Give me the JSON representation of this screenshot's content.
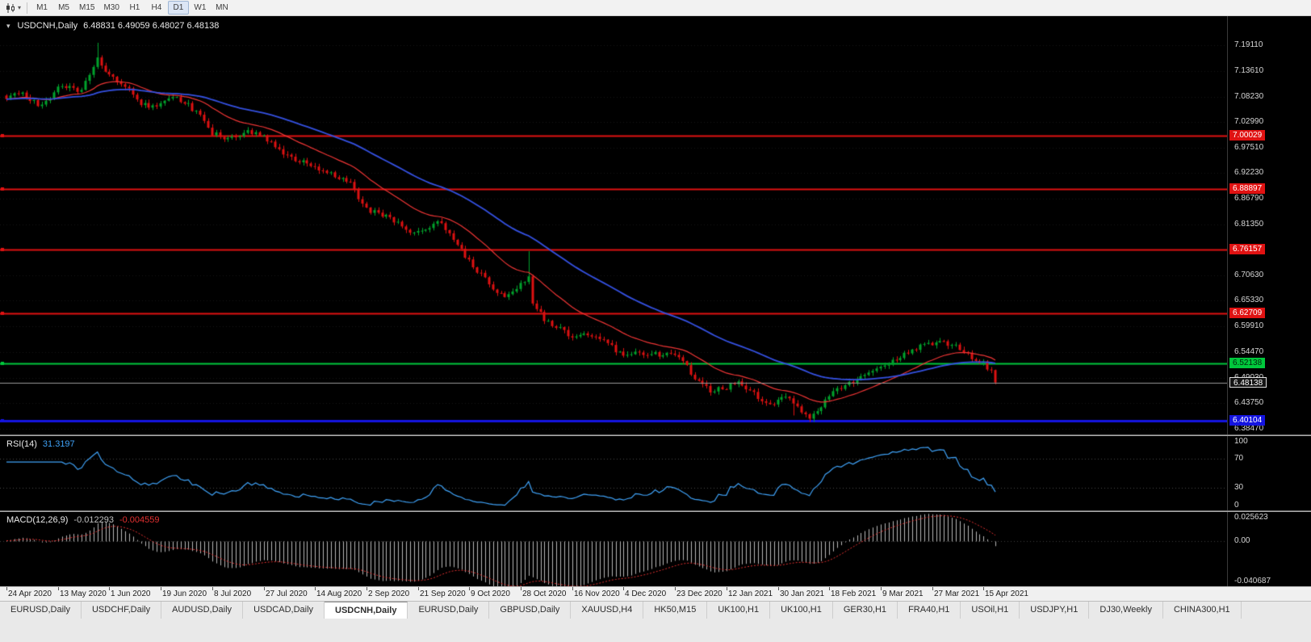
{
  "toolbar": {
    "timeframes": [
      "M1",
      "M5",
      "M15",
      "M30",
      "H1",
      "H4",
      "D1",
      "W1",
      "MN"
    ],
    "active_timeframe": "D1"
  },
  "chart_data": {
    "type": "candlestick",
    "title": {
      "symbol_period": "USDCNH,Daily",
      "ohlc_text": "6.48831 6.49059 6.48027 6.48138",
      "open": "6.48831",
      "high": "6.49059",
      "low": "6.48027",
      "close": "6.48138"
    },
    "x_labels": [
      "24 Apr 2020",
      "13 May 2020",
      "1 Jun 2020",
      "19 Jun 2020",
      "8 Jul 2020",
      "27 Jul 2020",
      "14 Aug 2020",
      "2 Sep 2020",
      "21 Sep 2020",
      "9 Oct 2020",
      "28 Oct 2020",
      "16 Nov 2020",
      "4 Dec 2020",
      "23 Dec 2020",
      "12 Jan 2021",
      "30 Jan 2021",
      "18 Feb 2021",
      "9 Mar 2021",
      "27 Mar 2021",
      "15 Apr 2021"
    ],
    "bars_per_x_label": 13,
    "price_pane": {
      "ylim": [
        6.372,
        7.252
      ],
      "y_ticks": [
        "7.19110",
        "7.13610",
        "7.08230",
        "7.02990",
        "6.97510",
        "6.92230",
        "6.86790",
        "6.81350",
        "6.76030",
        "6.70630",
        "6.65330",
        "6.59910",
        "6.54470",
        "6.49030",
        "6.43750",
        "6.38470"
      ],
      "horizontal_lines": [
        {
          "price": 7.00029,
          "label": "7.00029",
          "color": "#e01212",
          "text_color": "#ffffff",
          "width": 2
        },
        {
          "price": 6.88897,
          "label": "6.88897",
          "color": "#e01212",
          "text_color": "#ffffff",
          "width": 2
        },
        {
          "price": 6.76157,
          "label": "6.76157",
          "color": "#e01212",
          "text_color": "#ffffff",
          "width": 2
        },
        {
          "price": 6.62709,
          "label": "6.62709",
          "color": "#e01212",
          "text_color": "#ffffff",
          "width": 2
        },
        {
          "price": 6.52138,
          "label": "6.52138",
          "color": "#00c83c",
          "text_color": "#00230b",
          "width": 2
        },
        {
          "price": 6.40104,
          "label": "6.40104",
          "color": "#1414e0",
          "text_color": "#ffffff",
          "width": 3
        }
      ],
      "bid_line": {
        "price": 6.48138,
        "label": "6.48138",
        "color": "#9a9a9a"
      },
      "num_candles": 251,
      "last_close": 6.48138,
      "trend_anchors": [
        [
          0,
          7.08
        ],
        [
          3,
          7.094
        ],
        [
          6,
          7.075
        ],
        [
          9,
          7.064
        ],
        [
          13,
          7.1
        ],
        [
          16,
          7.108
        ],
        [
          19,
          7.092
        ],
        [
          22,
          7.148
        ],
        [
          23,
          7.162
        ],
        [
          25,
          7.135
        ],
        [
          28,
          7.118
        ],
        [
          31,
          7.096
        ],
        [
          34,
          7.068
        ],
        [
          37,
          7.06
        ],
        [
          39,
          7.072
        ],
        [
          43,
          7.078
        ],
        [
          46,
          7.064
        ],
        [
          49,
          7.04
        ],
        [
          52,
          7.006
        ],
        [
          55,
          6.998
        ],
        [
          58,
          7.002
        ],
        [
          61,
          7.008
        ],
        [
          65,
          7.0
        ],
        [
          68,
          6.976
        ],
        [
          71,
          6.958
        ],
        [
          74,
          6.948
        ],
        [
          78,
          6.938
        ],
        [
          81,
          6.922
        ],
        [
          84,
          6.912
        ],
        [
          87,
          6.902
        ],
        [
          89,
          6.87
        ],
        [
          91,
          6.844
        ],
        [
          94,
          6.836
        ],
        [
          97,
          6.828
        ],
        [
          100,
          6.812
        ],
        [
          103,
          6.792
        ],
        [
          106,
          6.802
        ],
        [
          109,
          6.822
        ],
        [
          112,
          6.792
        ],
        [
          115,
          6.76
        ],
        [
          118,
          6.726
        ],
        [
          121,
          6.698
        ],
        [
          124,
          6.672
        ],
        [
          126,
          6.656
        ],
        [
          129,
          6.682
        ],
        [
          132,
          6.706
        ],
        [
          133,
          6.642
        ],
        [
          136,
          6.616
        ],
        [
          139,
          6.6
        ],
        [
          143,
          6.574
        ],
        [
          146,
          6.586
        ],
        [
          149,
          6.578
        ],
        [
          152,
          6.562
        ],
        [
          156,
          6.534
        ],
        [
          159,
          6.548
        ],
        [
          162,
          6.542
        ],
        [
          166,
          6.538
        ],
        [
          169,
          6.542
        ],
        [
          172,
          6.514
        ],
        [
          175,
          6.48
        ],
        [
          178,
          6.463
        ],
        [
          182,
          6.47
        ],
        [
          185,
          6.483
        ],
        [
          188,
          6.462
        ],
        [
          191,
          6.444
        ],
        [
          194,
          6.434
        ],
        [
          197,
          6.456
        ],
        [
          200,
          6.43
        ],
        [
          203,
          6.41
        ],
        [
          206,
          6.43
        ],
        [
          208,
          6.452
        ],
        [
          211,
          6.47
        ],
        [
          214,
          6.483
        ],
        [
          217,
          6.498
        ],
        [
          221,
          6.512
        ],
        [
          224,
          6.528
        ],
        [
          227,
          6.541
        ],
        [
          230,
          6.553
        ],
        [
          233,
          6.562
        ],
        [
          236,
          6.569
        ],
        [
          239,
          6.561
        ],
        [
          242,
          6.547
        ],
        [
          245,
          6.53
        ],
        [
          247,
          6.524
        ],
        [
          249,
          6.502
        ],
        [
          250,
          6.4814
        ]
      ],
      "spike_highs": [
        [
          23,
          7.196
        ],
        [
          132,
          6.7575
        ]
      ],
      "spike_lows": [
        [
          199,
          6.412
        ],
        [
          203,
          6.403
        ]
      ],
      "candle_up_color": "#00a32c",
      "candle_down_color": "#dd1111",
      "ma_fast": {
        "period": 21,
        "color": "#ef3535"
      },
      "ma_slow": {
        "period": 55,
        "color": "#3450e0"
      }
    },
    "rsi_pane": {
      "name": "RSI(14)",
      "value": "31.3197",
      "period": 14,
      "levels": [
        "100",
        "70",
        "30",
        "0"
      ],
      "level_values": [
        100,
        70,
        30,
        0
      ],
      "line_color": "#3fa2f7"
    },
    "macd_pane": {
      "name": "MACD(12,26,9)",
      "main_value": "-0.012293",
      "signal_value": "-0.004559",
      "fast": 12,
      "slow": 26,
      "signal": 9,
      "ylim": [
        -0.040687,
        0.025623
      ],
      "y_ticks": [
        "0.025623",
        "0.00",
        "-0.040687"
      ],
      "y_tick_values": [
        0.025623,
        0,
        -0.040687
      ],
      "main_color": "#b8b8b8",
      "signal_color": "#e23030"
    }
  },
  "tabs": {
    "items": [
      {
        "label": "EURUSD,Daily"
      },
      {
        "label": "USDCHF,Daily"
      },
      {
        "label": "AUDUSD,Daily"
      },
      {
        "label": "USDCAD,Daily"
      },
      {
        "label": "USDCNH,Daily"
      },
      {
        "label": "EURUSD,Daily"
      },
      {
        "label": "GBPUSD,Daily"
      },
      {
        "label": "XAUUSD,H4"
      },
      {
        "label": "HK50,M15"
      },
      {
        "label": "UK100,H1"
      },
      {
        "label": "UK100,H1"
      },
      {
        "label": "GER30,H1"
      },
      {
        "label": "FRA40,H1"
      },
      {
        "label": "USOil,H1"
      },
      {
        "label": "USDJPY,H1"
      },
      {
        "label": "DJ30,Weekly"
      },
      {
        "label": "CHINA300,H1"
      }
    ],
    "active_index": 4
  }
}
